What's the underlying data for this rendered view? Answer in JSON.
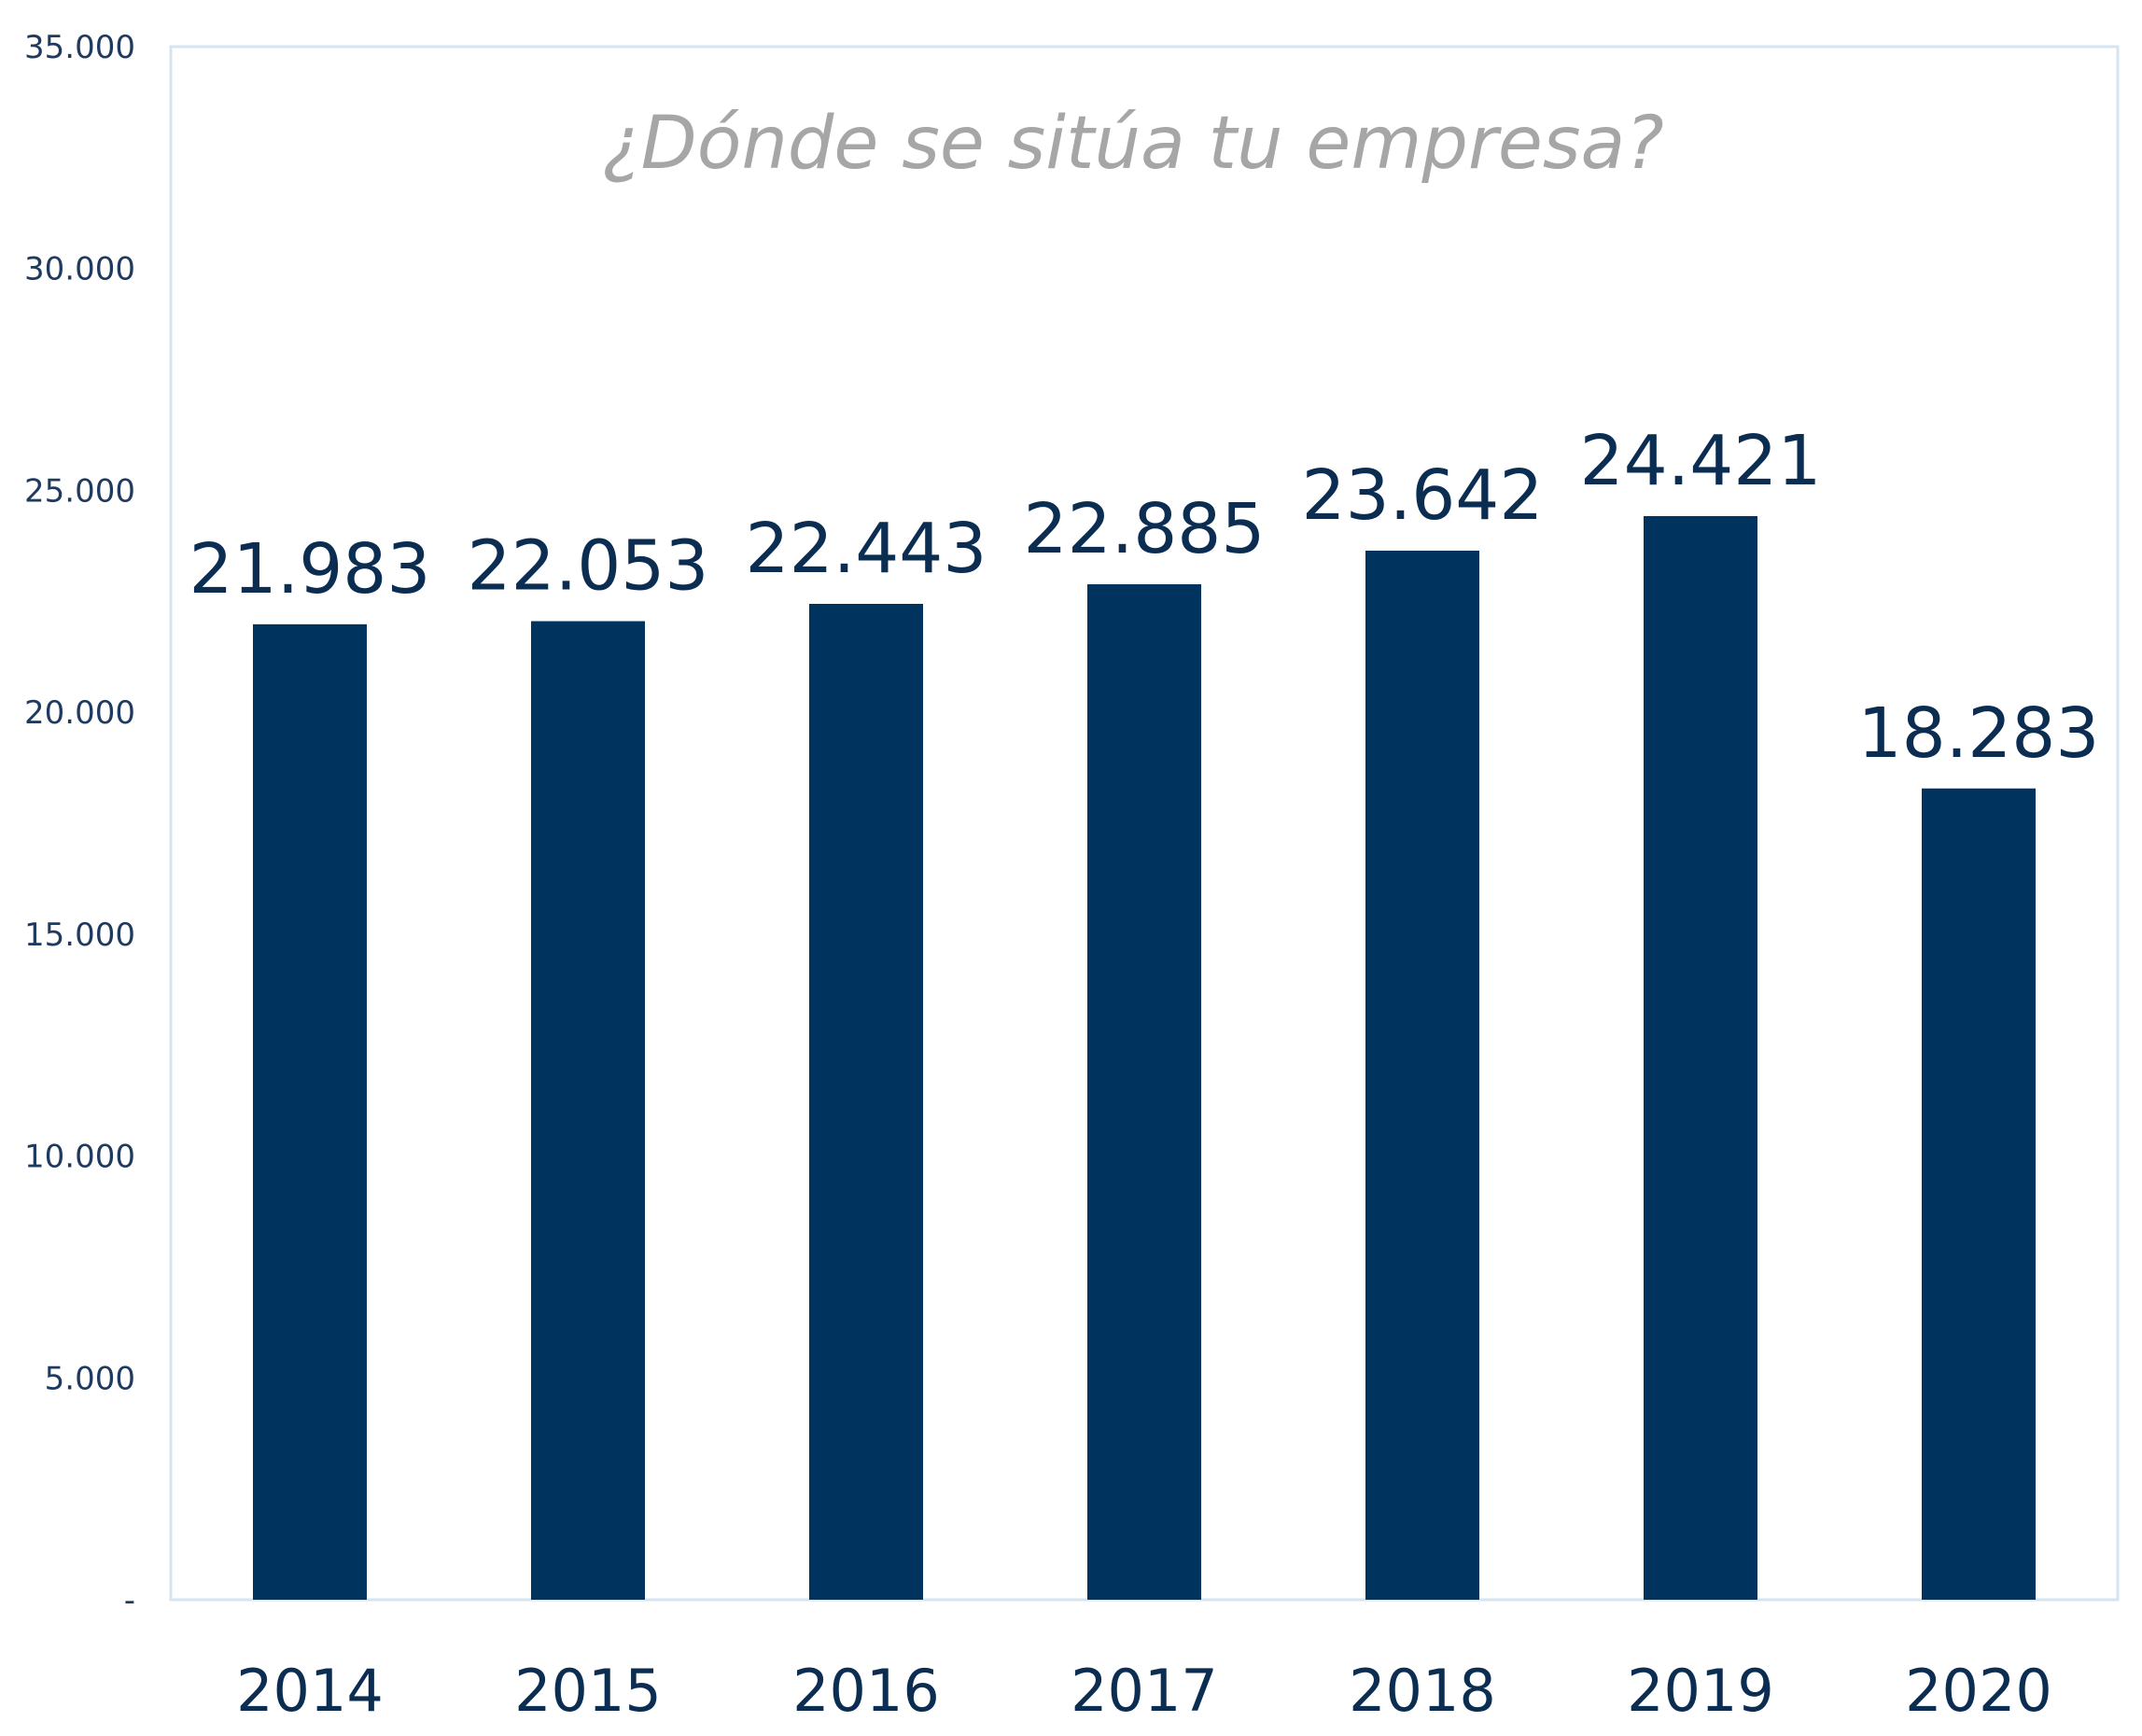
{
  "colors": {
    "bar": "#00335e",
    "frame": "#d6e4ef",
    "title": "#a6a6a6",
    "text": "#0b2d52"
  },
  "chart_data": {
    "type": "bar",
    "title": "¿Dónde se sitúa tu empresa?",
    "xlabel": "",
    "ylabel": "",
    "categories": [
      "2014",
      "2015",
      "2016",
      "2017",
      "2018",
      "2019",
      "2020"
    ],
    "values": [
      21983,
      22053,
      22443,
      22885,
      23642,
      24421,
      18283
    ],
    "value_labels": [
      "21.983",
      "22.053",
      "22.443",
      "22.885",
      "23.642",
      "24.421",
      "18.283"
    ],
    "ylim": [
      0,
      35000
    ],
    "yticks": [
      0,
      5000,
      10000,
      15000,
      20000,
      25000,
      30000,
      35000
    ],
    "ytick_labels": [
      "-",
      "5.000",
      "10.000",
      "15.000",
      "20.000",
      "25.000",
      "30.000",
      "35.000"
    ],
    "grid": false,
    "legend": "none"
  }
}
